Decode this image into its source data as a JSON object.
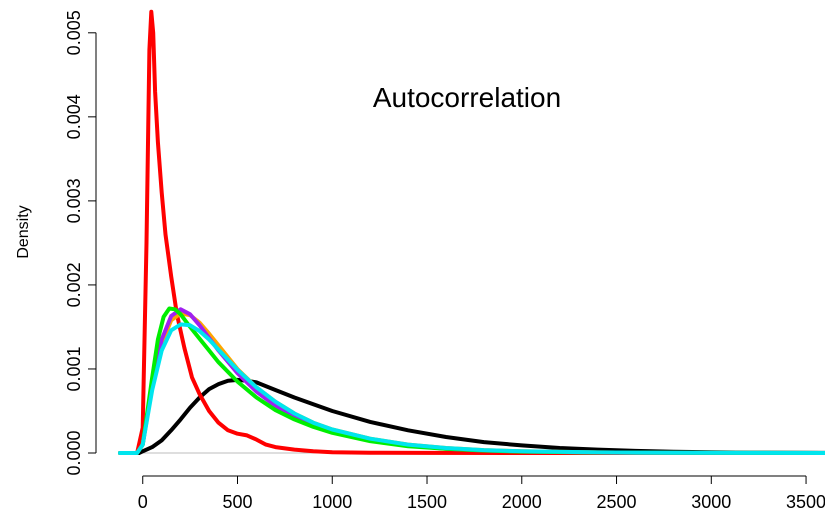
{
  "chart_data": {
    "type": "line",
    "title": "",
    "annotation": "Autocorrelation",
    "xlabel": "",
    "ylabel": "Density",
    "xlim": [
      -120,
      3600
    ],
    "ylim": [
      0,
      0.0052
    ],
    "x_ticks": [
      0,
      500,
      1000,
      1500,
      2000,
      2500,
      3000,
      3500
    ],
    "x_tick_labels": [
      "0",
      "500",
      "1000",
      "1500",
      "2000",
      "2500",
      "3000",
      "3500"
    ],
    "y_ticks": [
      0,
      0.001,
      0.002,
      0.003,
      0.004,
      0.005
    ],
    "y_tick_labels": [
      "0.000",
      "0.001",
      "0.002",
      "0.003",
      "0.004",
      "0.005"
    ],
    "grid": false,
    "legend": "none",
    "baseline": {
      "y": 0,
      "color": "#bebebe"
    },
    "series": [
      {
        "color": "#000000",
        "x": [
          -120,
          -20,
          0,
          50,
          100,
          150,
          200,
          250,
          300,
          350,
          400,
          450,
          500,
          550,
          600,
          700,
          800,
          900,
          1000,
          1200,
          1400,
          1600,
          1800,
          2000,
          2200,
          2400,
          2600,
          2800,
          3000,
          3200,
          3400,
          3600
        ],
        "y": [
          0,
          0,
          2e-05,
          7e-05,
          0.00015,
          0.00027,
          0.0004,
          0.00054,
          0.00066,
          0.00076,
          0.00082,
          0.00086,
          0.00087,
          0.00086,
          0.00084,
          0.00075,
          0.00066,
          0.00058,
          0.0005,
          0.00037,
          0.00027,
          0.00019,
          0.00013,
          9e-05,
          6e-05,
          4e-05,
          2.5e-05,
          1.5e-05,
          1e-05,
          5e-06,
          2e-06,
          1e-06
        ]
      },
      {
        "color": "#ff0000",
        "x": [
          -120,
          -30,
          0,
          20,
          35,
          45,
          55,
          65,
          80,
          100,
          120,
          150,
          180,
          220,
          260,
          300,
          350,
          400,
          450,
          500,
          550,
          600,
          650,
          700,
          800,
          900,
          1000,
          1200,
          1500,
          2000,
          3600
        ],
        "y": [
          0,
          0,
          0.0003,
          0.0025,
          0.0048,
          0.00525,
          0.005,
          0.0043,
          0.0037,
          0.0031,
          0.0026,
          0.0021,
          0.00165,
          0.00125,
          0.0009,
          0.0007,
          0.0005,
          0.00036,
          0.00027,
          0.00023,
          0.00021,
          0.00016,
          0.0001,
          7e-05,
          4e-05,
          2e-05,
          1e-05,
          3e-06,
          1e-06,
          0,
          0
        ]
      },
      {
        "color": "#ffa500",
        "x": [
          -120,
          -30,
          0,
          50,
          100,
          150,
          200,
          250,
          300,
          350,
          400,
          500,
          600,
          700,
          800,
          900,
          1000,
          1200,
          1400,
          1600,
          1800,
          2000,
          2400,
          2800,
          3200,
          3600
        ],
        "y": [
          0,
          0,
          0.0001,
          0.0008,
          0.0013,
          0.00158,
          0.00166,
          0.00164,
          0.00155,
          0.00142,
          0.00128,
          0.001,
          0.00078,
          0.00061,
          0.00047,
          0.00036,
          0.00028,
          0.00017,
          0.0001,
          6e-05,
          3.5e-05,
          2e-05,
          7e-06,
          2e-06,
          1e-06,
          0
        ]
      },
      {
        "color": "#a020f0",
        "x": [
          -120,
          -30,
          0,
          50,
          100,
          150,
          200,
          250,
          300,
          350,
          400,
          500,
          600,
          700,
          800,
          900,
          1000,
          1200,
          1400,
          1600,
          1800,
          2000,
          2400,
          2800,
          3200,
          3600
        ],
        "y": [
          0,
          0,
          0.0001,
          0.0008,
          0.00135,
          0.00163,
          0.00171,
          0.00165,
          0.00152,
          0.00137,
          0.00122,
          0.00095,
          0.00073,
          0.00056,
          0.00043,
          0.00033,
          0.00025,
          0.00015,
          9e-05,
          5e-05,
          3e-05,
          1.8e-05,
          6e-06,
          2e-06,
          1e-06,
          0
        ]
      },
      {
        "color": "#00ee00",
        "x": [
          -120,
          -30,
          0,
          50,
          80,
          110,
          140,
          170,
          200,
          250,
          300,
          350,
          400,
          500,
          600,
          700,
          800,
          900,
          1000,
          1200,
          1400,
          1600,
          1800,
          2000,
          2400,
          2800,
          3200,
          3600
        ],
        "y": [
          0,
          0,
          0.0001,
          0.0009,
          0.00135,
          0.00162,
          0.00172,
          0.00171,
          0.00165,
          0.0015,
          0.00136,
          0.00122,
          0.00108,
          0.00085,
          0.00066,
          0.00051,
          0.0004,
          0.00031,
          0.00024,
          0.00014,
          8e-05,
          5e-05,
          3e-05,
          1.7e-05,
          6e-06,
          2e-06,
          1e-06,
          0
        ]
      },
      {
        "color": "#00e5ee",
        "x": [
          -120,
          -30,
          0,
          50,
          100,
          150,
          200,
          250,
          300,
          350,
          400,
          500,
          600,
          700,
          800,
          900,
          1000,
          1200,
          1400,
          1600,
          1800,
          2000,
          2400,
          2800,
          3200,
          3600
        ],
        "y": [
          0,
          0,
          0.0001,
          0.00075,
          0.00122,
          0.00146,
          0.00153,
          0.00152,
          0.00145,
          0.00135,
          0.00123,
          0.00099,
          0.00078,
          0.00061,
          0.00047,
          0.00036,
          0.00028,
          0.00017,
          0.0001,
          6e-05,
          3.5e-05,
          2e-05,
          7e-06,
          2e-06,
          1e-06,
          0
        ]
      }
    ]
  }
}
